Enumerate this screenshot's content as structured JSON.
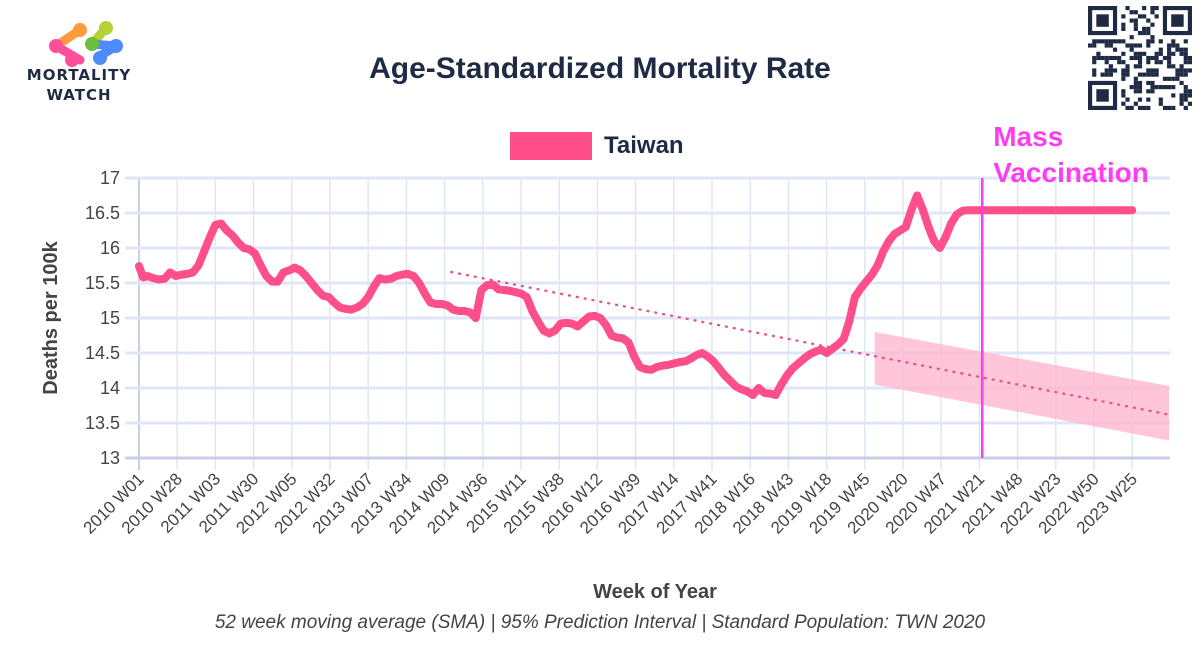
{
  "brand": {
    "name_line1": "MORTALITY",
    "name_line2": "WATCH",
    "logo_colors": [
      "#ff4f9a",
      "#ff9a3d",
      "#6bbf3a",
      "#b5d334",
      "#4f8bff"
    ]
  },
  "qr_code": {
    "label": "qr-code"
  },
  "chart_data": {
    "type": "line",
    "title": "Age-Standardized Mortality Rate",
    "xlabel": "Week of Year",
    "ylabel": "Deaths per 100k",
    "ylim": [
      13,
      17
    ],
    "yticks": [
      "17",
      "16.5",
      "16",
      "15.5",
      "15",
      "14.5",
      "14",
      "13.5",
      "13"
    ],
    "ytick_values": [
      17,
      16.5,
      16,
      15.5,
      15,
      14.5,
      14,
      13.5,
      13
    ],
    "xticks": [
      "2010 W01",
      "2010 W28",
      "2011 W03",
      "2011 W30",
      "2012 W05",
      "2012 W32",
      "2013 W07",
      "2013 W34",
      "2014 W09",
      "2014 W36",
      "2015 W11",
      "2015 W38",
      "2016 W12",
      "2016 W39",
      "2017 W14",
      "2017 W41",
      "2018 W16",
      "2018 W43",
      "2019 W18",
      "2019 W45",
      "2020 W20",
      "2020 W47",
      "2021 W21",
      "2021 W48",
      "2022 W23",
      "2022 W50",
      "2023 W25"
    ],
    "x_tick_step_weeks": 27,
    "x_range_weeks": [
      0,
      728
    ],
    "grid": true,
    "legend": {
      "position": "top-center",
      "entries": [
        {
          "name": "Taiwan",
          "color": "#ff4f8b"
        }
      ]
    },
    "series": [
      {
        "name": "Taiwan",
        "color": "#ff4f8b",
        "x_weeks": [
          0,
          3,
          6,
          10,
          14,
          18,
          22,
          26,
          30,
          34,
          38,
          42,
          46,
          50,
          54,
          58,
          62,
          66,
          70,
          74,
          78,
          82,
          86,
          90,
          94,
          98,
          102,
          106,
          110,
          114,
          118,
          122,
          126,
          130,
          134,
          138,
          142,
          146,
          150,
          154,
          158,
          162,
          166,
          170,
          174,
          178,
          182,
          186,
          190,
          194,
          198,
          202,
          206,
          210,
          214,
          218,
          222,
          226,
          230,
          234,
          238,
          242,
          246,
          250,
          254,
          258,
          262,
          266,
          270,
          274,
          278,
          282,
          286,
          290,
          294,
          298,
          302,
          306,
          310,
          314,
          318,
          322,
          326,
          330,
          334,
          338,
          342,
          346,
          350,
          354,
          358,
          362,
          366,
          370,
          374,
          378,
          382,
          386,
          390,
          394,
          398,
          402,
          406,
          410,
          414,
          418,
          422,
          426,
          430,
          434,
          438,
          442,
          446,
          450,
          454,
          458,
          462,
          466,
          470,
          474,
          478,
          482,
          486,
          490,
          494,
          498,
          502,
          506,
          510,
          514,
          518,
          522,
          526,
          530,
          534,
          538,
          542,
          546,
          550,
          554,
          558,
          562,
          566,
          570,
          574,
          578,
          582,
          586,
          590,
          594,
          598,
          602,
          606,
          610,
          614,
          618,
          622,
          626,
          630,
          634,
          638,
          642,
          646,
          650,
          654,
          658,
          662,
          666,
          670,
          674,
          678,
          682,
          686,
          690,
          694,
          698,
          702,
          706,
          710,
          714,
          718,
          722,
          726,
          728
        ],
        "values": [
          15.74,
          15.58,
          15.6,
          15.57,
          15.55,
          15.56,
          15.65,
          15.6,
          15.62,
          15.63,
          15.65,
          15.75,
          15.95,
          16.15,
          16.33,
          16.35,
          16.25,
          16.18,
          16.08,
          16.0,
          15.98,
          15.92,
          15.75,
          15.6,
          15.52,
          15.52,
          15.65,
          15.68,
          15.72,
          15.68,
          15.6,
          15.5,
          15.4,
          15.32,
          15.3,
          15.22,
          15.15,
          15.13,
          15.12,
          15.15,
          15.2,
          15.3,
          15.45,
          15.57,
          15.55,
          15.56,
          15.6,
          15.62,
          15.63,
          15.6,
          15.5,
          15.35,
          15.22,
          15.2,
          15.2,
          15.18,
          15.12,
          15.1,
          15.1,
          15.08,
          15.0,
          15.4,
          15.47,
          15.48,
          15.41,
          15.4,
          15.39,
          15.37,
          15.35,
          15.3,
          15.1,
          14.95,
          14.82,
          14.78,
          14.82,
          14.92,
          14.93,
          14.92,
          14.88,
          14.95,
          15.02,
          15.03,
          15.0,
          14.9,
          14.75,
          14.72,
          14.71,
          14.65,
          14.45,
          14.3,
          14.27,
          14.26,
          14.3,
          14.32,
          14.33,
          14.35,
          14.37,
          14.38,
          14.42,
          14.47,
          14.5,
          14.45,
          14.38,
          14.28,
          14.18,
          14.1,
          14.02,
          13.98,
          13.95,
          13.9,
          14.0,
          13.93,
          13.92,
          13.9,
          14.05,
          14.18,
          14.28,
          14.35,
          14.42,
          14.48,
          14.52,
          14.55,
          14.5,
          14.56,
          14.62,
          14.7,
          14.95,
          15.3,
          15.42,
          15.52,
          15.62,
          15.75,
          15.95,
          16.1,
          16.2,
          16.25,
          16.3,
          16.55,
          16.75,
          16.55,
          16.3,
          16.1,
          16.0,
          16.15,
          16.35,
          16.48,
          16.53,
          16.54,
          16.54,
          16.54,
          16.54,
          16.54,
          16.54,
          16.54,
          16.54,
          16.54,
          16.54,
          16.54,
          16.54,
          16.54,
          16.54,
          16.54,
          16.54,
          16.54,
          16.54,
          16.54,
          16.54,
          16.54,
          16.54,
          16.54,
          16.54,
          16.54,
          16.54,
          16.54,
          16.54,
          16.54,
          16.54,
          16.54,
          16.54,
          16.54
        ]
      }
    ],
    "trend_baseline": {
      "style": "dotted",
      "color": "#e8508a",
      "start_week": 220,
      "start_value": 15.66,
      "end_week": 728,
      "end_value": 13.62
    },
    "prediction_interval": {
      "label": "95% Prediction Interval",
      "color": "#ffb6cf",
      "start_week": 520,
      "end_week": 728,
      "upper_start": 14.8,
      "upper_end": 14.03,
      "lower_start": 14.05,
      "lower_end": 13.25
    },
    "annotations": [
      {
        "type": "vline",
        "week": 596,
        "color": "#ff3df0",
        "text_line1": "Mass",
        "text_line2": "Vaccination"
      }
    ],
    "footnote": "52 week moving average (SMA) | 95% Prediction Interval | Standard Population: TWN 2020"
  }
}
